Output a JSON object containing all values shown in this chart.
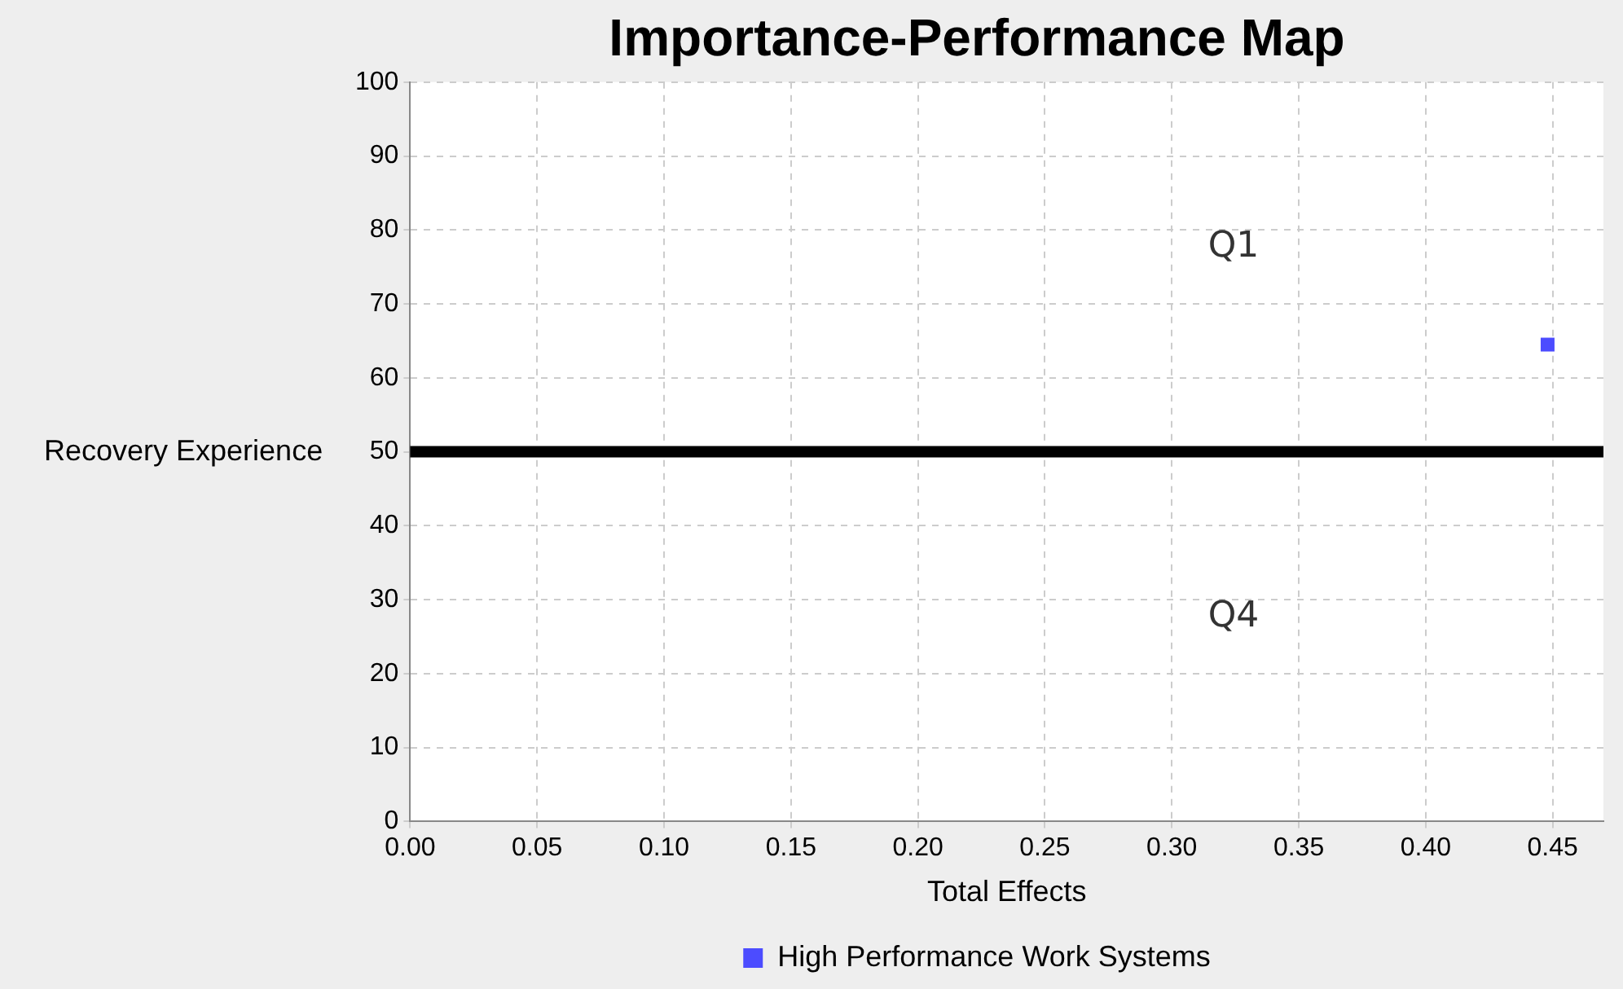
{
  "chart_data": {
    "type": "scatter",
    "title": "Importance-Performance Map",
    "xlabel": "Total Effects",
    "ylabel": "Recovery Experience",
    "series": [
      {
        "name": "High Performance Work Systems",
        "color": "#4c4cff",
        "x": [
          0.448
        ],
        "values": [
          64.5
        ]
      }
    ],
    "xlim": [
      0,
      0.47
    ],
    "xticks": [
      {
        "value": 0,
        "label": "0.00"
      },
      {
        "value": 0.05,
        "label": "0.05"
      },
      {
        "value": 0.1,
        "label": "0.10"
      },
      {
        "value": 0.15,
        "label": "0.15"
      },
      {
        "value": 0.2,
        "label": "0.20"
      },
      {
        "value": 0.25,
        "label": "0.25"
      },
      {
        "value": 0.3,
        "label": "0.30"
      },
      {
        "value": 0.35,
        "label": "0.35"
      },
      {
        "value": 0.4,
        "label": "0.40"
      },
      {
        "value": 0.45,
        "label": "0.45"
      }
    ],
    "ylim": [
      0,
      100
    ],
    "yticks": [
      0,
      10,
      20,
      30,
      40,
      50,
      60,
      70,
      80,
      90,
      100
    ],
    "ref_lines": [
      {
        "axis": "y",
        "value": 50,
        "color": "#000000"
      }
    ],
    "annotations": [
      "Q1",
      "Q4"
    ],
    "grid": true,
    "legend": "bottom",
    "marker": "square"
  }
}
